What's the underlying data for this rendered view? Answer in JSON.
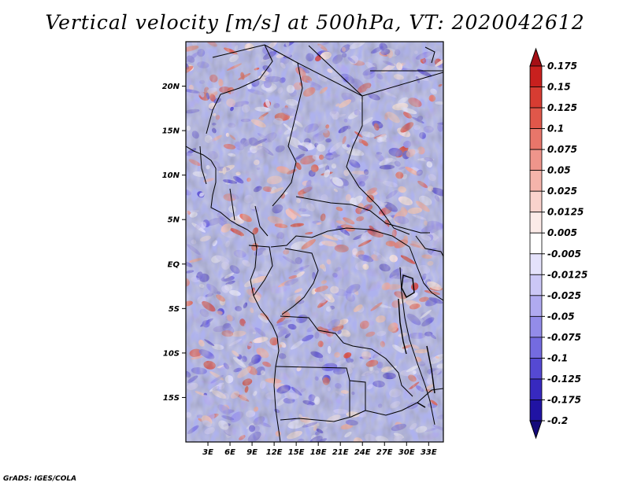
{
  "title": "Vertical velocity [m/s] at 500hPa, VT: 2020042612",
  "credit": "GrADS: IGES/COLA",
  "lat_labels": [
    "20N",
    "15N",
    "10N",
    "5N",
    "EQ",
    "5S",
    "10S",
    "15S"
  ],
  "lat_values": [
    20,
    15,
    10,
    5,
    0,
    -5,
    -10,
    -15
  ],
  "lon_labels": [
    "3E",
    "6E",
    "9E",
    "12E",
    "15E",
    "18E",
    "21E",
    "24E",
    "27E",
    "30E",
    "33E"
  ],
  "lon_values": [
    3,
    6,
    9,
    12,
    15,
    18,
    21,
    24,
    27,
    30,
    33
  ],
  "extent": {
    "lon_min": 0,
    "lon_max": 35,
    "lat_min": -20,
    "lat_max": 25
  },
  "colorbar": {
    "labels": [
      "0.175",
      "0.15",
      "0.125",
      "0.1",
      "0.075",
      "0.05",
      "0.025",
      "0.0125",
      "0.005",
      "-0.005",
      "-0.0125",
      "-0.025",
      "-0.05",
      "-0.075",
      "-0.1",
      "-0.125",
      "-0.175",
      "-0.2"
    ],
    "colors": [
      "#a50f15",
      "#c8201e",
      "#d73c32",
      "#e0574a",
      "#e8766a",
      "#ef958b",
      "#f5b4ab",
      "#f9d2cc",
      "#fcebe8",
      "#ffffff",
      "#e4e2fb",
      "#cbc7f6",
      "#b0aaf0",
      "#938ce9",
      "#746be0",
      "#5549d3",
      "#3729bf",
      "#2013a3",
      "#140a7a"
    ]
  }
}
